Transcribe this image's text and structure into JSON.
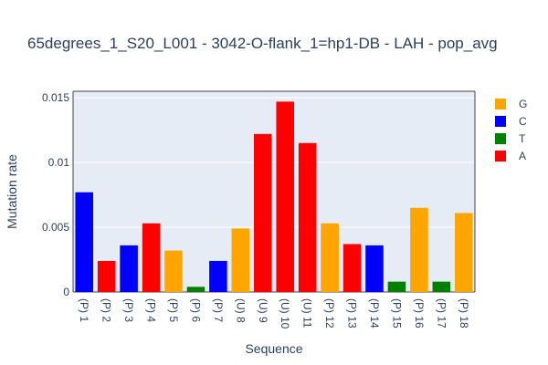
{
  "chart_data": {
    "type": "bar",
    "title": "65degrees_1_S20_L001 - 3042-O-flank_1=hp1-DB - LAH - pop_avg",
    "xlabel": "Sequence",
    "ylabel": "Mutation rate",
    "ylim": [
      0,
      0.0155
    ],
    "yticks": [
      {
        "value": 0,
        "label": "0"
      },
      {
        "value": 0.005,
        "label": "0.005"
      },
      {
        "value": 0.01,
        "label": "0.01"
      },
      {
        "value": 0.015,
        "label": "0.015"
      }
    ],
    "grid": true,
    "legend_position": "top-right",
    "categories": [
      "(P) 1",
      "(P) 2",
      "(P) 3",
      "(P) 4",
      "(P) 5",
      "(P) 6",
      "(P) 7",
      "(U) 8",
      "(U) 9",
      "(U) 10",
      "(U) 11",
      "(P) 12",
      "(P) 13",
      "(P) 14",
      "(P) 15",
      "(P) 16",
      "(P) 17",
      "(P) 18"
    ],
    "bases": [
      "C",
      "A",
      "C",
      "A",
      "G",
      "T",
      "C",
      "G",
      "A",
      "A",
      "A",
      "G",
      "A",
      "C",
      "T",
      "G",
      "T",
      "G"
    ],
    "values": [
      0.0077,
      0.0024,
      0.0036,
      0.0053,
      0.0032,
      0.0004,
      0.0024,
      0.0049,
      0.0122,
      0.0147,
      0.0115,
      0.0053,
      0.0037,
      0.0036,
      0.0008,
      0.0065,
      0.0008,
      0.0061
    ],
    "legend": [
      {
        "name": "G",
        "color": "#ffa500"
      },
      {
        "name": "C",
        "color": "#0000ff"
      },
      {
        "name": "T",
        "color": "#008000"
      },
      {
        "name": "A",
        "color": "#ff0000"
      }
    ],
    "colors": {
      "plot_bg": "#e5ecf6",
      "grid": "#ffffff",
      "text": "#2a3f5f"
    }
  }
}
